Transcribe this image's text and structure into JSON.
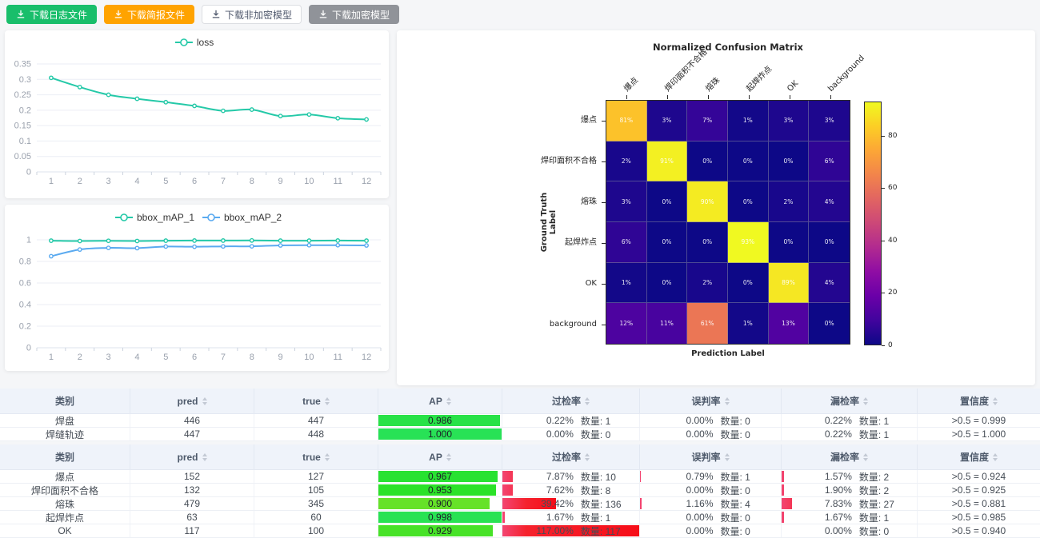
{
  "toolbar": {
    "buttons": [
      {
        "label": "下载日志文件",
        "bg": "#19be6b",
        "fg": "#ffffff",
        "border": "#19be6b"
      },
      {
        "label": "下载简报文件",
        "bg": "#ffa300",
        "fg": "#ffffff",
        "border": "#ffa300"
      },
      {
        "label": "下载非加密模型",
        "bg": "#ffffff",
        "fg": "#515a6e",
        "border": "#dcdee2"
      },
      {
        "label": "下载加密模型",
        "bg": "#909399",
        "fg": "#ffffff",
        "border": "#909399"
      }
    ]
  },
  "chart_data": [
    {
      "type": "line",
      "title": "",
      "legend_position": "top",
      "grid": true,
      "colors": [
        "#25c9a8"
      ],
      "x": [
        1,
        2,
        3,
        4,
        5,
        6,
        7,
        8,
        9,
        10,
        11,
        12
      ],
      "series": [
        {
          "name": "loss",
          "values": [
            0.305,
            0.275,
            0.25,
            0.237,
            0.226,
            0.214,
            0.198,
            0.202,
            0.181,
            0.186,
            0.174,
            0.17
          ]
        }
      ],
      "y_ticks": [
        0,
        0.05,
        0.1,
        0.15,
        0.2,
        0.25,
        0.3,
        0.35
      ],
      "ylim": [
        0,
        0.35
      ]
    },
    {
      "type": "line",
      "title": "",
      "legend_position": "top",
      "grid": true,
      "colors": [
        "#25c9a8",
        "#5aaaf0"
      ],
      "x": [
        1,
        2,
        3,
        4,
        5,
        6,
        7,
        8,
        9,
        10,
        11,
        12
      ],
      "series": [
        {
          "name": "bbox_mAP_1",
          "values": [
            0.992,
            0.989,
            0.991,
            0.989,
            0.992,
            0.993,
            0.993,
            0.994,
            0.992,
            0.992,
            0.993,
            0.992
          ]
        },
        {
          "name": "bbox_mAP_2",
          "values": [
            0.848,
            0.91,
            0.925,
            0.923,
            0.938,
            0.936,
            0.939,
            0.94,
            0.948,
            0.95,
            0.95,
            0.948
          ]
        }
      ],
      "y_ticks": [
        0,
        0.2,
        0.4,
        0.6,
        0.8,
        1
      ],
      "ylim": [
        0,
        1
      ]
    },
    {
      "type": "heatmap",
      "title": "Normalized Confusion Matrix",
      "xlabel": "Prediction Label",
      "ylabel": "Ground Truth Label",
      "colormap": "plasma",
      "labels": [
        "爆点",
        "焊印面积不合格",
        "熔珠",
        "起焊炸点",
        "OK",
        "background"
      ],
      "matrix": [
        [
          81,
          3,
          7,
          1,
          3,
          3
        ],
        [
          2,
          91,
          0,
          0,
          0,
          6
        ],
        [
          3,
          0,
          90,
          0,
          2,
          4
        ],
        [
          6,
          0,
          0,
          93,
          0,
          0
        ],
        [
          1,
          0,
          2,
          0,
          89,
          4
        ],
        [
          12,
          11,
          61,
          1,
          13,
          0
        ]
      ],
      "unit": "%",
      "vmax": 93,
      "colorbar_ticks": [
        0,
        20,
        40,
        60,
        80
      ]
    }
  ],
  "tables": {
    "count_label": "数量:",
    "columns": [
      {
        "key": "category",
        "label": "类别",
        "sortable": false
      },
      {
        "key": "pred",
        "label": "pred",
        "sortable": true
      },
      {
        "key": "true",
        "label": "true",
        "sortable": true
      },
      {
        "key": "ap",
        "label": "AP",
        "sortable": true
      },
      {
        "key": "over",
        "label": "过检率",
        "sortable": true
      },
      {
        "key": "mis",
        "label": "误判率",
        "sortable": true
      },
      {
        "key": "miss",
        "label": "漏检率",
        "sortable": true
      },
      {
        "key": "conf",
        "label": "置信度",
        "sortable": true
      }
    ],
    "groups": [
      {
        "rows": [
          {
            "category": "焊盘",
            "pred": "446",
            "true": "447",
            "ap": "0.986",
            "over_pct": "0.22%",
            "over_count": "1",
            "mis_pct": "0.00%",
            "mis_count": "0",
            "miss_pct": "0.22%",
            "miss_count": "1",
            "conf": ">0.5 = 0.999"
          },
          {
            "category": "焊缝轨迹",
            "pred": "447",
            "true": "448",
            "ap": "1.000",
            "over_pct": "0.00%",
            "over_count": "0",
            "mis_pct": "0.00%",
            "mis_count": "0",
            "miss_pct": "0.22%",
            "miss_count": "1",
            "conf": ">0.5 = 1.000"
          }
        ]
      },
      {
        "rows": [
          {
            "category": "爆点",
            "pred": "152",
            "true": "127",
            "ap": "0.967",
            "over_pct": "7.87%",
            "over_count": "10",
            "mis_pct": "0.79%",
            "mis_count": "1",
            "miss_pct": "1.57%",
            "miss_count": "2",
            "conf": ">0.5 = 0.924"
          },
          {
            "category": "焊印面积不合格",
            "pred": "132",
            "true": "105",
            "ap": "0.953",
            "over_pct": "7.62%",
            "over_count": "8",
            "mis_pct": "0.00%",
            "mis_count": "0",
            "miss_pct": "1.90%",
            "miss_count": "2",
            "conf": ">0.5 = 0.925"
          },
          {
            "category": "熔珠",
            "pred": "479",
            "true": "345",
            "ap": "0.900",
            "over_pct": "39.42%",
            "over_count": "136",
            "mis_pct": "1.16%",
            "mis_count": "4",
            "miss_pct": "7.83%",
            "miss_count": "27",
            "conf": ">0.5 = 0.881"
          },
          {
            "category": "起焊炸点",
            "pred": "63",
            "true": "60",
            "ap": "0.998",
            "over_pct": "1.67%",
            "over_count": "1",
            "mis_pct": "0.00%",
            "mis_count": "0",
            "miss_pct": "1.67%",
            "miss_count": "1",
            "conf": ">0.5 = 0.985"
          },
          {
            "category": "OK",
            "pred": "117",
            "true": "100",
            "ap": "0.929",
            "over_pct": "117.00%",
            "over_count": "117",
            "mis_pct": "0.00%",
            "mis_count": "0",
            "miss_pct": "0.00%",
            "miss_count": "0",
            "conf": ">0.5 = 0.940"
          }
        ]
      }
    ]
  }
}
